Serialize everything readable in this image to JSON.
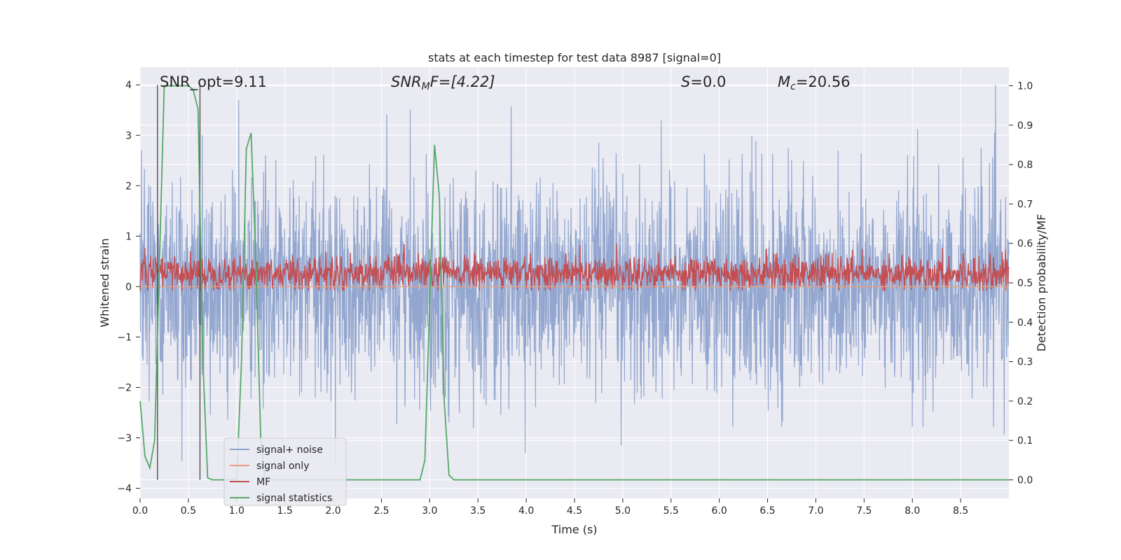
{
  "chart_data": {
    "type": "line",
    "title": "stats at each timestep for test data 8987 [signal=0]",
    "xlabel": "Time (s)",
    "ylabel": "Whitened strain",
    "y2label": "Detection probability/MF",
    "xlim": [
      0,
      9.0
    ],
    "ylim": [
      -4.2,
      4.35
    ],
    "y2lim": [
      -0.047,
      1.047
    ],
    "x_ticks": [
      "0.0",
      "0.5",
      "1.0",
      "1.5",
      "2.0",
      "2.5",
      "3.0",
      "3.5",
      "4.0",
      "4.5",
      "5.0",
      "5.5",
      "6.0",
      "6.5",
      "7.0",
      "7.5",
      "8.0",
      "8.5"
    ],
    "y_ticks": [
      "4",
      "3",
      "2",
      "1",
      "0",
      "−1",
      "−2",
      "−3",
      "−4"
    ],
    "y2_ticks": [
      "1.0",
      "0.9",
      "0.8",
      "0.7",
      "0.6",
      "0.5",
      "0.4",
      "0.3",
      "0.2",
      "0.1",
      "0.0"
    ],
    "grid": true,
    "legend_position": "lower-left",
    "annotations": {
      "snr_opt": "SNR_opt=9.11",
      "snr_mf_label": "SNR",
      "snr_mf_sub": "M",
      "snr_mf_tail": "F=[4.22]",
      "s_label": "S",
      "s_value": "=0.0",
      "mc_label": "M",
      "mc_sub": "c",
      "mc_value": "=20.56"
    },
    "vertical_markers": [
      0.18,
      0.62
    ],
    "series": [
      {
        "name": "signal+ noise",
        "color": "#8da2cc",
        "axis": "left",
        "style": "dense noise spanning roughly -3.6 to 4.0 strain",
        "amplitude_range": [
          -3.6,
          4.0
        ]
      },
      {
        "name": "signal only",
        "color": "#e8a07e",
        "axis": "left",
        "x": [
          0,
          9.0
        ],
        "y": [
          0.0,
          0.0
        ]
      },
      {
        "name": "MF",
        "color": "#c44e52",
        "axis": "right",
        "style": "noisy band roughly 0.48 to 0.60",
        "amplitude_range": [
          0.48,
          0.6
        ]
      },
      {
        "name": "signal statistics",
        "color": "#55a868",
        "axis": "right",
        "x": [
          0.0,
          0.05,
          0.1,
          0.15,
          0.2,
          0.25,
          0.3,
          0.35,
          0.4,
          0.45,
          0.5,
          0.55,
          0.6,
          0.65,
          0.7,
          0.75,
          0.8,
          1.0,
          1.05,
          1.1,
          1.15,
          1.2,
          1.25,
          1.3,
          2.9,
          2.95,
          3.0,
          3.05,
          3.1,
          3.15,
          3.2,
          3.25,
          3.3,
          9.0
        ],
        "y": [
          0.2,
          0.06,
          0.03,
          0.1,
          0.55,
          1.0,
          1.0,
          1.0,
          1.0,
          1.0,
          1.0,
          0.99,
          0.94,
          0.3,
          0.005,
          0.0,
          0.0,
          0.0,
          0.3,
          0.84,
          0.88,
          0.55,
          0.1,
          0.0,
          0.0,
          0.05,
          0.45,
          0.85,
          0.72,
          0.2,
          0.012,
          0.0,
          0.0,
          0.0
        ]
      }
    ]
  }
}
